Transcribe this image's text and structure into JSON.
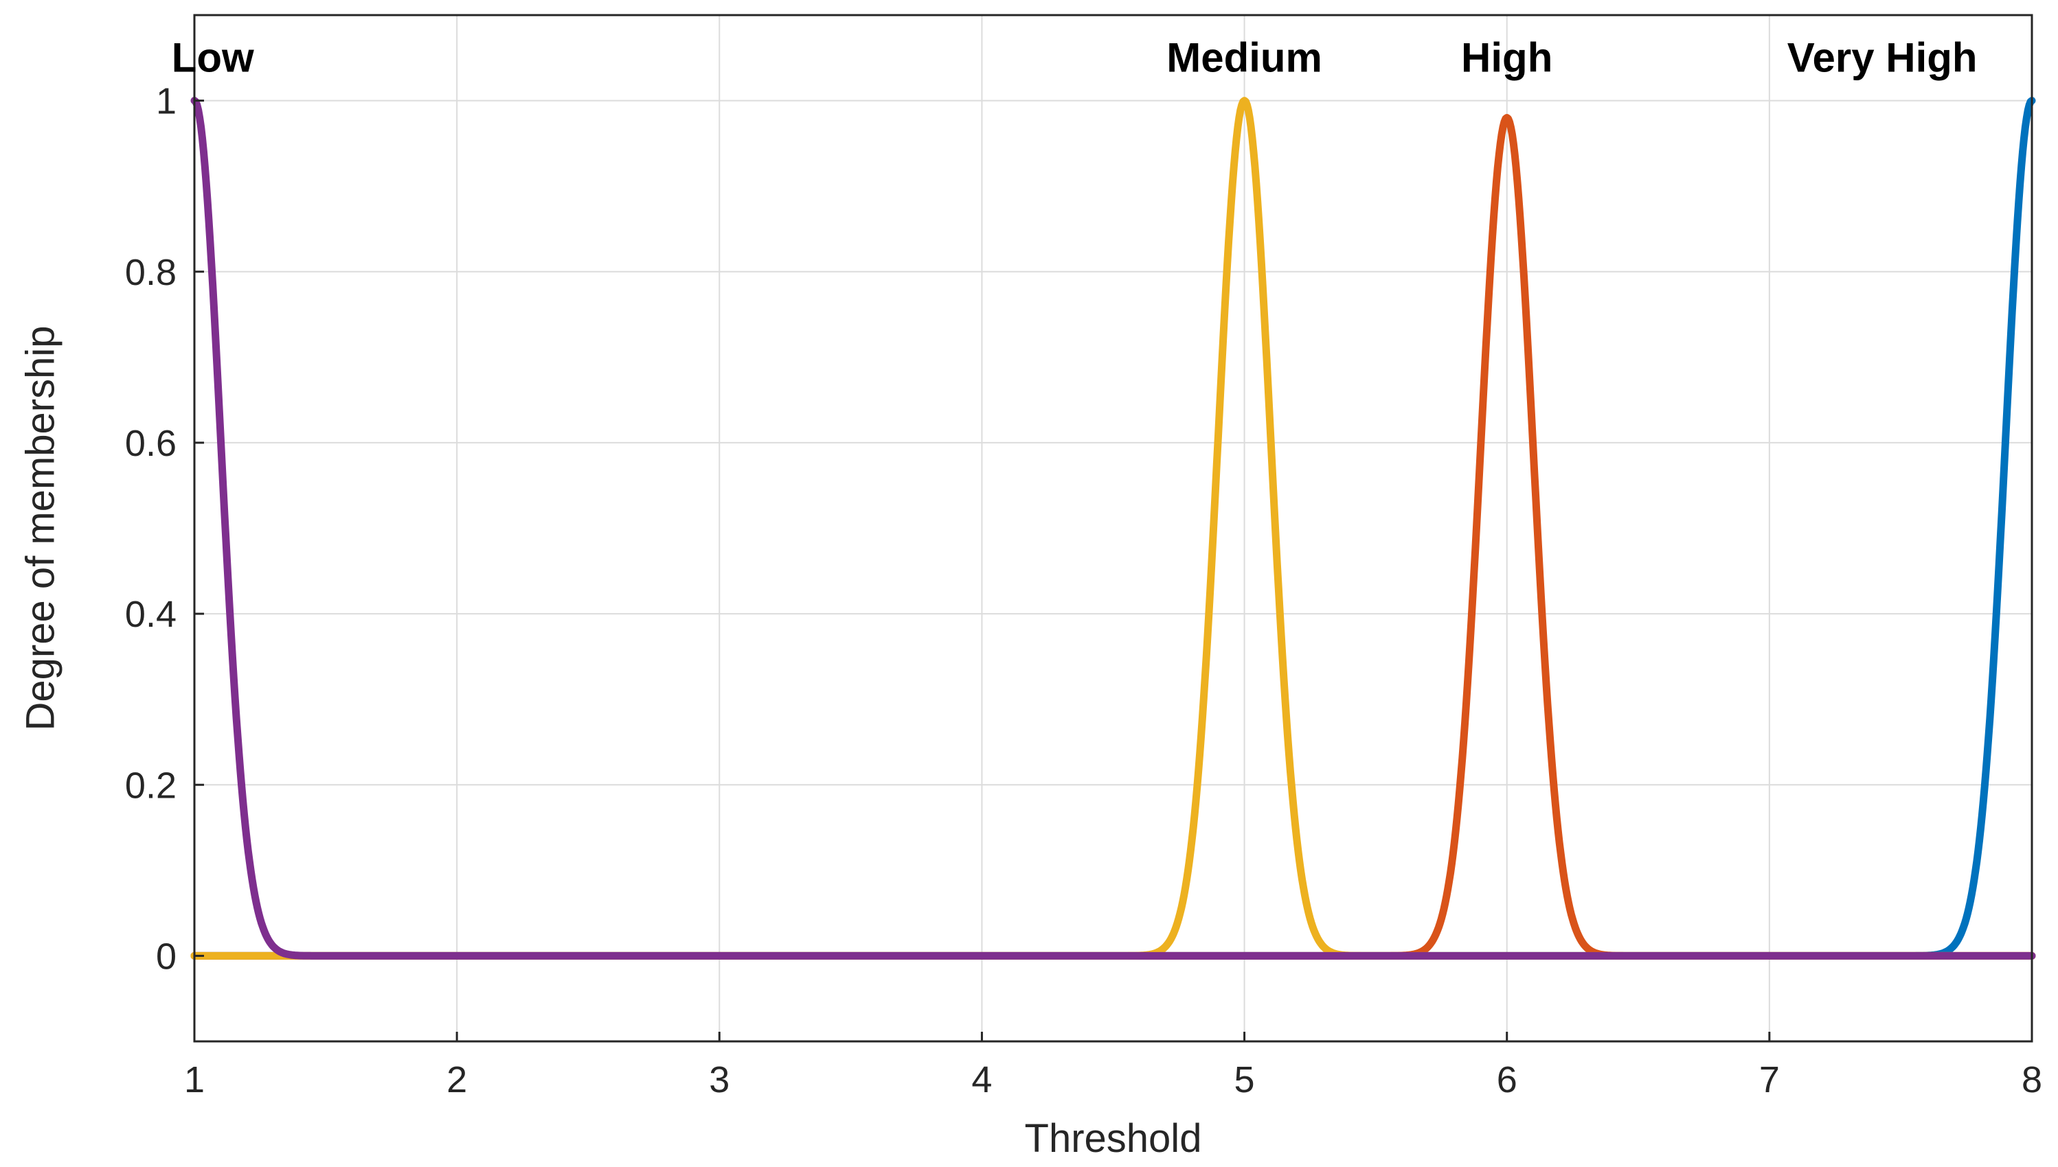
{
  "chart_data": {
    "type": "line",
    "title": "",
    "xlabel": "Threshold",
    "ylabel": "Degree of membership",
    "xlim": [
      1,
      8
    ],
    "ylim": [
      -0.1,
      1.1
    ],
    "xticks": [
      1,
      2,
      3,
      4,
      5,
      6,
      7,
      8
    ],
    "yticks": [
      0,
      0.2,
      0.4,
      0.6,
      0.8,
      1
    ],
    "ytick_labels": [
      "0",
      "0.2",
      "0.4",
      "0.6",
      "0.8",
      "1"
    ],
    "grid": true,
    "series": [
      {
        "label": "Low",
        "shape": "gaussian",
        "center": 1,
        "sigma": 0.1,
        "peak": 1.0,
        "color": "#7E2F8E"
      },
      {
        "label": "Medium",
        "shape": "gaussian",
        "center": 5,
        "sigma": 0.1,
        "peak": 1.0,
        "color": "#EDB120"
      },
      {
        "label": "High",
        "shape": "gaussian",
        "center": 6,
        "sigma": 0.1,
        "peak": 0.98,
        "color": "#D95319"
      },
      {
        "label": "Very High",
        "shape": "gaussian",
        "center": 8,
        "sigma": 0.1,
        "peak": 1.0,
        "color": "#0072BD"
      }
    ],
    "annotations": [
      {
        "text": "Low",
        "x": 1.07,
        "y": 1.05
      },
      {
        "text": "Medium",
        "x": 5.0,
        "y": 1.05
      },
      {
        "text": "High",
        "x": 6.0,
        "y": 1.05
      },
      {
        "text": "Very High",
        "x": 7.43,
        "y": 1.05
      }
    ]
  }
}
